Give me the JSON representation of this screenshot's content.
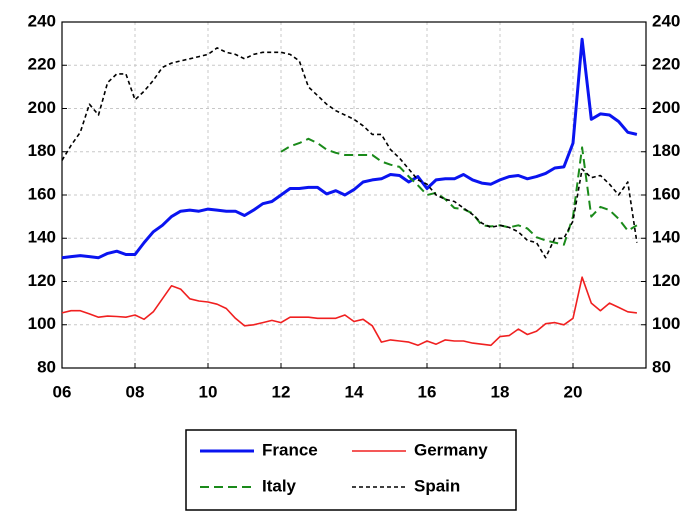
{
  "chart_data": {
    "type": "line",
    "x": [
      6,
      6.25,
      6.5,
      6.75,
      7,
      7.25,
      7.5,
      7.75,
      8,
      8.25,
      8.5,
      8.75,
      9,
      9.25,
      9.5,
      9.75,
      10,
      10.25,
      10.5,
      10.75,
      11,
      11.25,
      11.5,
      11.75,
      12,
      12.25,
      12.5,
      12.75,
      13,
      13.25,
      13.5,
      13.75,
      14,
      14.25,
      14.5,
      14.75,
      15,
      15.25,
      15.5,
      15.75,
      16,
      16.25,
      16.5,
      16.75,
      17,
      17.25,
      17.5,
      17.75,
      18,
      18.25,
      18.5,
      18.75,
      19,
      19.25,
      19.5,
      19.75,
      20,
      20.25,
      20.5,
      20.75,
      21,
      21.25,
      21.5,
      21.75
    ],
    "series": [
      {
        "name": "France",
        "color": "#0a14f0",
        "dash": "solid",
        "width": 3,
        "values": [
          131,
          131.5,
          132,
          131.5,
          131,
          133,
          134,
          132.5,
          132.5,
          138,
          143,
          146,
          150,
          152.5,
          153,
          152.5,
          153.5,
          153,
          152.5,
          152.5,
          150.5,
          153,
          156,
          157,
          160,
          163,
          163,
          163.5,
          163.5,
          160.5,
          162,
          160,
          162.5,
          166,
          167,
          167.5,
          169.5,
          169,
          166,
          168.5,
          163,
          167,
          167.5,
          167.5,
          169.5,
          167,
          165.5,
          165,
          167,
          168.5,
          169,
          167.5,
          168.5,
          170,
          172.5,
          173,
          184,
          232,
          195,
          197.5,
          197,
          194,
          189,
          188
        ]
      },
      {
        "name": "Germany",
        "color": "#f02020",
        "dash": "solid",
        "width": 1.6,
        "values": [
          105.5,
          106.5,
          106.5,
          105,
          103.5,
          104,
          103.8,
          103.5,
          104.5,
          102.5,
          106,
          112,
          118,
          116.5,
          112,
          111,
          110.5,
          109.5,
          107.5,
          103,
          99.5,
          100,
          101,
          102,
          101,
          103.5,
          103.5,
          103.5,
          103,
          103,
          103,
          104.5,
          101.5,
          102.5,
          99.5,
          92,
          93,
          92.5,
          92,
          90.5,
          92.5,
          91,
          93,
          92.5,
          92.5,
          91.5,
          91,
          90.5,
          94.5,
          95,
          98,
          95.5,
          97,
          100.5,
          101,
          100,
          103,
          122,
          110,
          106.5,
          110,
          108,
          106,
          105.5
        ]
      },
      {
        "name": "Italy",
        "color": "#1a8a1a",
        "dash": "long",
        "width": 2,
        "values": [
          null,
          null,
          null,
          null,
          null,
          null,
          null,
          null,
          null,
          null,
          null,
          null,
          null,
          null,
          null,
          null,
          null,
          null,
          null,
          null,
          null,
          null,
          null,
          null,
          180,
          182.5,
          184,
          186,
          184,
          181,
          179.5,
          178.5,
          178.5,
          178.5,
          178.5,
          175.5,
          174,
          173,
          168.5,
          164.5,
          160,
          161,
          158,
          154,
          153.5,
          151.5,
          146,
          145.5,
          146,
          145,
          146,
          144.5,
          140.5,
          139,
          138,
          137,
          150,
          182,
          150,
          154.5,
          153,
          149,
          143.5,
          146
        ]
      },
      {
        "name": "Spain",
        "color": "#000000",
        "dash": "short",
        "width": 1.6,
        "values": [
          176,
          183,
          189,
          202,
          197,
          212,
          216,
          216,
          204,
          208,
          213,
          219,
          221,
          222,
          223,
          224,
          225,
          228,
          226,
          225,
          223,
          225,
          226,
          226,
          226,
          225,
          222,
          210,
          206,
          202,
          199,
          197,
          195,
          192,
          188,
          188,
          181,
          177,
          172,
          167,
          165,
          160,
          158,
          157,
          154,
          151,
          147,
          145,
          146,
          145,
          143,
          139,
          138,
          131,
          140,
          140,
          148,
          172,
          168,
          169,
          165,
          160,
          166,
          138
        ]
      }
    ],
    "xlim": [
      6,
      22
    ],
    "xticks": [
      {
        "value": 6,
        "label": "06"
      },
      {
        "value": 8,
        "label": "08"
      },
      10,
      12,
      14,
      16,
      18,
      20
    ],
    "ylim": [
      80,
      240
    ],
    "yticks": [
      80,
      100,
      120,
      140,
      160,
      180,
      200,
      220,
      240
    ],
    "grid": true,
    "legend": "bottom"
  }
}
